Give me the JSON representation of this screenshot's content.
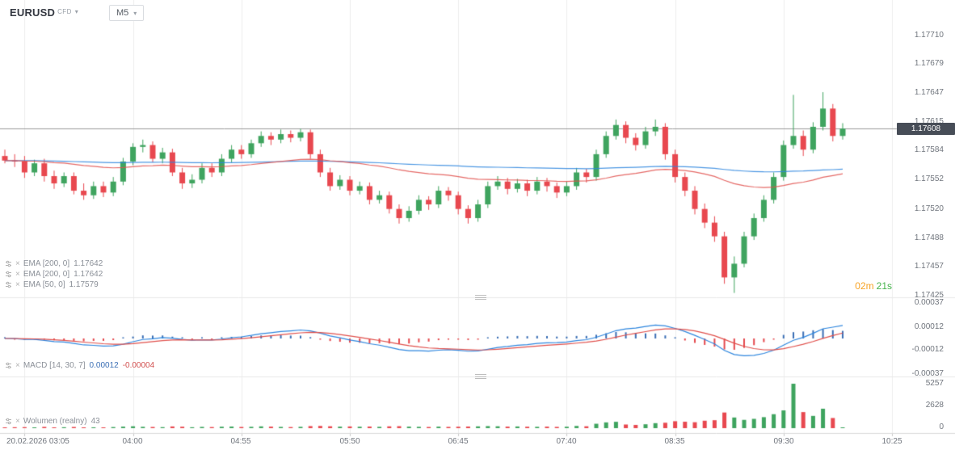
{
  "header": {
    "symbol": "EURUSD",
    "market_type": "CFD",
    "timeframe": "M5"
  },
  "indicators": [
    {
      "label": "EMA [200, 0]",
      "value": "1.17642"
    },
    {
      "label": "EMA [200, 0]",
      "value": "1.17642"
    },
    {
      "label": "EMA [50, 0]",
      "value": "1.17579"
    }
  ],
  "macd_label": {
    "name": "MACD [14, 30, 7]",
    "value1": "0.00012",
    "value2": "-0.00004"
  },
  "volume_label": {
    "name": "Wolumen  (realny)",
    "value": "43"
  },
  "timer": {
    "minutes": "02m",
    "seconds": "21s"
  },
  "price_axis": {
    "labels": [
      "1.17710",
      "1.17679",
      "1.17647",
      "1.17615",
      "1.17584",
      "1.17552",
      "1.17520",
      "1.17488",
      "1.17457",
      "1.17425"
    ],
    "current": "1.17608"
  },
  "macd_axis": {
    "labels": [
      "0.00037",
      "0.00012",
      "-0.00012",
      "-0.00037"
    ]
  },
  "volume_axis": {
    "labels": [
      "5257",
      "2628",
      "0"
    ]
  },
  "time_axis": {
    "labels": [
      "20.02.2026  03:05",
      "04:00",
      "04:55",
      "05:50",
      "06:45",
      "07:40",
      "08:35",
      "09:30",
      "10:25"
    ]
  },
  "chart_data": {
    "type": "candlestick",
    "symbol": "EURUSD",
    "timeframe": "M5",
    "date": "20.02.2026",
    "interval_minutes": 5,
    "current_price": 1.17608,
    "price_axis_ticks": [
      1.1771,
      1.17679,
      1.17647,
      1.17615,
      1.17584,
      1.17552,
      1.1752,
      1.17488,
      1.17457,
      1.17425
    ],
    "time_ticks": [
      "03:05",
      "04:00",
      "04:55",
      "05:50",
      "06:45",
      "07:40",
      "08:35",
      "09:30",
      "10:25"
    ],
    "overlays": [
      {
        "type": "EMA",
        "period": 200,
        "value": 1.17642
      },
      {
        "type": "EMA",
        "period": 200,
        "value": 1.17642
      },
      {
        "type": "EMA",
        "period": 50,
        "value": 1.17579
      }
    ],
    "macd": {
      "params": [
        14,
        30,
        7
      ],
      "last_macd": 0.00012,
      "last_hist": -4e-05,
      "axis_ticks": [
        0.00037,
        0.00012,
        -0.00012,
        -0.00037
      ]
    },
    "volume_panel": {
      "axis_ticks": [
        5257,
        2628,
        0
      ],
      "last_volume": 43
    },
    "candles": [
      [
        1.17578,
        1.17585,
        1.1757,
        1.17573
      ],
      [
        1.17573,
        1.1758,
        1.17566,
        1.17572
      ],
      [
        1.17572,
        1.17578,
        1.17554,
        1.1756
      ],
      [
        1.1756,
        1.17574,
        1.17556,
        1.1757
      ],
      [
        1.1757,
        1.17575,
        1.1755,
        1.17556
      ],
      [
        1.17556,
        1.17562,
        1.17542,
        1.17548
      ],
      [
        1.17548,
        1.1756,
        1.17544,
        1.17556
      ],
      [
        1.17556,
        1.1756,
        1.17536,
        1.1754
      ],
      [
        1.1754,
        1.17548,
        1.1753,
        1.17535
      ],
      [
        1.17535,
        1.1755,
        1.17531,
        1.17545
      ],
      [
        1.17545,
        1.1755,
        1.17533,
        1.17538
      ],
      [
        1.17538,
        1.17555,
        1.17534,
        1.1755
      ],
      [
        1.1755,
        1.17576,
        1.17546,
        1.17572
      ],
      [
        1.17572,
        1.17592,
        1.17568,
        1.17588
      ],
      [
        1.17588,
        1.17596,
        1.17582,
        1.1759
      ],
      [
        1.1759,
        1.17594,
        1.17571,
        1.17575
      ],
      [
        1.17575,
        1.17587,
        1.1757,
        1.17582
      ],
      [
        1.17582,
        1.17586,
        1.17556,
        1.1756
      ],
      [
        1.1756,
        1.17565,
        1.17542,
        1.17548
      ],
      [
        1.17548,
        1.17558,
        1.17543,
        1.17552
      ],
      [
        1.17552,
        1.1757,
        1.17548,
        1.17565
      ],
      [
        1.17565,
        1.1757,
        1.17555,
        1.1756
      ],
      [
        1.1756,
        1.1758,
        1.17556,
        1.17575
      ],
      [
        1.17575,
        1.1759,
        1.17571,
        1.17585
      ],
      [
        1.17585,
        1.1759,
        1.17575,
        1.1758
      ],
      [
        1.1758,
        1.17596,
        1.17576,
        1.17592
      ],
      [
        1.17592,
        1.17605,
        1.17588,
        1.176
      ],
      [
        1.176,
        1.17604,
        1.1759,
        1.17596
      ],
      [
        1.17596,
        1.17607,
        1.17592,
        1.17602
      ],
      [
        1.17602,
        1.17606,
        1.17593,
        1.17598
      ],
      [
        1.17598,
        1.17608,
        1.17594,
        1.17604
      ],
      [
        1.17604,
        1.17607,
        1.17575,
        1.1758
      ],
      [
        1.1758,
        1.17585,
        1.17555,
        1.1756
      ],
      [
        1.1756,
        1.17565,
        1.1754,
        1.17545
      ],
      [
        1.17545,
        1.17557,
        1.17541,
        1.17552
      ],
      [
        1.17552,
        1.17556,
        1.17535,
        1.1754
      ],
      [
        1.1754,
        1.1755,
        1.17536,
        1.17545
      ],
      [
        1.17545,
        1.17549,
        1.17525,
        1.1753
      ],
      [
        1.1753,
        1.1754,
        1.17526,
        1.17535
      ],
      [
        1.17535,
        1.17539,
        1.17515,
        1.1752
      ],
      [
        1.1752,
        1.17525,
        1.17504,
        1.1751
      ],
      [
        1.1751,
        1.17523,
        1.17506,
        1.17518
      ],
      [
        1.17518,
        1.17535,
        1.17514,
        1.1753
      ],
      [
        1.1753,
        1.17534,
        1.17519,
        1.17525
      ],
      [
        1.17525,
        1.17545,
        1.17521,
        1.1754
      ],
      [
        1.1754,
        1.17544,
        1.17529,
        1.17535
      ],
      [
        1.17535,
        1.17539,
        1.17514,
        1.1752
      ],
      [
        1.1752,
        1.17524,
        1.17504,
        1.1751
      ],
      [
        1.1751,
        1.1753,
        1.17506,
        1.17525
      ],
      [
        1.17525,
        1.1755,
        1.17521,
        1.17545
      ],
      [
        1.17545,
        1.17556,
        1.17541,
        1.1755
      ],
      [
        1.1755,
        1.17554,
        1.17536,
        1.17542
      ],
      [
        1.17542,
        1.17553,
        1.17538,
        1.17548
      ],
      [
        1.17548,
        1.17552,
        1.17534,
        1.1754
      ],
      [
        1.1754,
        1.17555,
        1.17536,
        1.1755
      ],
      [
        1.1755,
        1.17554,
        1.17539,
        1.17545
      ],
      [
        1.17545,
        1.17549,
        1.17532,
        1.17538
      ],
      [
        1.17538,
        1.1755,
        1.17534,
        1.17545
      ],
      [
        1.17545,
        1.17565,
        1.17541,
        1.1756
      ],
      [
        1.1756,
        1.17564,
        1.17549,
        1.17555
      ],
      [
        1.17555,
        1.17585,
        1.17551,
        1.1758
      ],
      [
        1.1758,
        1.17605,
        1.17576,
        1.176
      ],
      [
        1.176,
        1.17618,
        1.17596,
        1.17612
      ],
      [
        1.17612,
        1.17616,
        1.17592,
        1.17598
      ],
      [
        1.17598,
        1.17603,
        1.17584,
        1.1759
      ],
      [
        1.1759,
        1.1761,
        1.17586,
        1.17605
      ],
      [
        1.17605,
        1.17618,
        1.176,
        1.1761
      ],
      [
        1.1761,
        1.17614,
        1.17574,
        1.1758
      ],
      [
        1.1758,
        1.17585,
        1.17549,
        1.17555
      ],
      [
        1.17555,
        1.1756,
        1.17534,
        1.1754
      ],
      [
        1.1754,
        1.17545,
        1.17514,
        1.1752
      ],
      [
        1.1752,
        1.17526,
        1.17499,
        1.17505
      ],
      [
        1.17505,
        1.17512,
        1.17484,
        1.1749
      ],
      [
        1.1749,
        1.17495,
        1.17438,
        1.17445
      ],
      [
        1.17445,
        1.17468,
        1.17428,
        1.1746
      ],
      [
        1.1746,
        1.17495,
        1.17456,
        1.1749
      ],
      [
        1.1749,
        1.17515,
        1.17486,
        1.1751
      ],
      [
        1.1751,
        1.17535,
        1.17506,
        1.1753
      ],
      [
        1.1753,
        1.1756,
        1.17526,
        1.17555
      ],
      [
        1.17555,
        1.17595,
        1.17551,
        1.1759
      ],
      [
        1.1759,
        1.17645,
        1.17586,
        1.176
      ],
      [
        1.176,
        1.17606,
        1.17578,
        1.17585
      ],
      [
        1.17585,
        1.17615,
        1.17581,
        1.1761
      ],
      [
        1.1761,
        1.17648,
        1.17606,
        1.1763
      ],
      [
        1.1763,
        1.17635,
        1.17594,
        1.176
      ],
      [
        1.176,
        1.17614,
        1.17596,
        1.17608
      ]
    ],
    "volumes": [
      90,
      110,
      120,
      80,
      150,
      90,
      110,
      140,
      70,
      100,
      90,
      130,
      180,
      220,
      160,
      140,
      120,
      200,
      170,
      110,
      150,
      130,
      170,
      190,
      140,
      160,
      210,
      180,
      150,
      130,
      160,
      240,
      260,
      220,
      180,
      200,
      170,
      190,
      160,
      210,
      230,
      180,
      160,
      140,
      180,
      150,
      170,
      190,
      210,
      240,
      220,
      180,
      200,
      170,
      160,
      180,
      150,
      170,
      260,
      220,
      520,
      680,
      750,
      430,
      380,
      460,
      590,
      640,
      820,
      760,
      700,
      880,
      940,
      1850,
      1260,
      980,
      1100,
      1300,
      1650,
      2100,
      5257,
      1900,
      1450,
      2300,
      1200,
      43
    ],
    "colors": {
      "up": "#3fa45f",
      "down": "#e8484f",
      "macd_line": "#2e86de",
      "signal_line": "#e0504c",
      "hist_pos": "#3b6fb5",
      "hist_neg": "#e5484d",
      "ema200": "#2e86de",
      "ema50": "#e0504c",
      "grid": "#ededed",
      "price_line": "#9b9b9b",
      "badge_bg": "#474d57",
      "timer_min": "#f7a325",
      "timer_sec": "#44b24a"
    }
  }
}
